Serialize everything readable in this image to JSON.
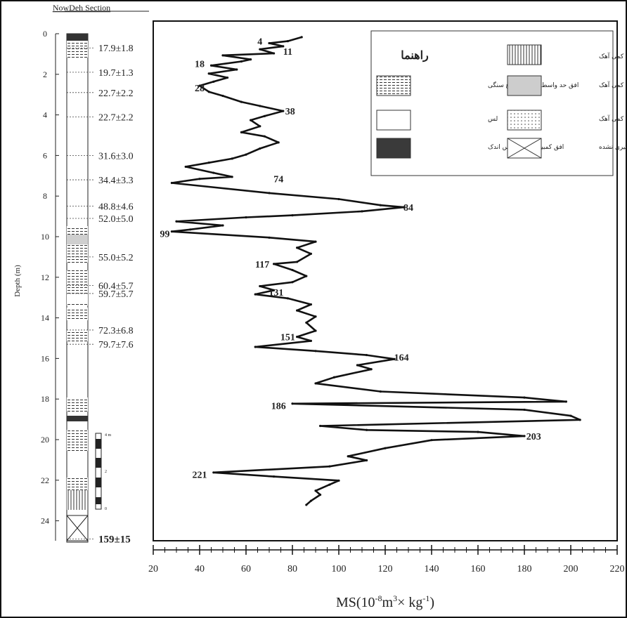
{
  "section_title": "NowDeh Section",
  "depth_axis": {
    "label": "Depth (m)",
    "ticks": [
      0,
      2,
      4,
      6,
      8,
      10,
      12,
      14,
      16,
      18,
      20,
      22,
      24
    ],
    "range": [
      0,
      25
    ]
  },
  "ages": [
    {
      "depth": 0.7,
      "label": "17.9±1.8"
    },
    {
      "depth": 1.9,
      "label": "19.7±1.3"
    },
    {
      "depth": 2.9,
      "label": "22.7±2.2"
    },
    {
      "depth": 4.1,
      "label": "22.7±2.2"
    },
    {
      "depth": 6.0,
      "label": "31.6±3.0"
    },
    {
      "depth": 7.2,
      "label": "34.4±3.3"
    },
    {
      "depth": 8.5,
      "label": "48.8±4.6"
    },
    {
      "depth": 9.1,
      "label": "52.0±5.0"
    },
    {
      "depth": 11.0,
      "label": "55.0±5.2"
    },
    {
      "depth": 12.4,
      "label": "60.4±5.7"
    },
    {
      "depth": 12.8,
      "label": "59.7±5.7"
    },
    {
      "depth": 14.6,
      "label": "72.3±6.8"
    },
    {
      "depth": 15.3,
      "label": "79.7±7.6"
    },
    {
      "depth": 24.9,
      "label": "159±15"
    }
  ],
  "scale_bar": {
    "labels": [
      "4 m",
      "2",
      "0"
    ]
  },
  "legend": {
    "title": "راهنما",
    "items": [
      {
        "label": "افق آرژلیک با کمی آهک",
        "pattern": "vlines"
      },
      {
        "label": "افق حد واسط C وB انقطاع سنگی",
        "pattern": "hdash"
      },
      {
        "label": "افق کمبیک با کمی آهک",
        "pattern": "gray"
      },
      {
        "label": "لس",
        "pattern": "blank"
      },
      {
        "label": "افق C با کمی آهک",
        "pattern": "dots"
      },
      {
        "label": "افق کمبیک با تجمع رس اندک",
        "pattern": "dark"
      },
      {
        "label": "اندازه گیری نشده",
        "pattern": "cross"
      }
    ]
  },
  "chart_data": {
    "type": "line",
    "xlabel": "MS(10⁻⁸m³× kg⁻¹)",
    "ylabel": "Depth (m)",
    "xlim": [
      20,
      220
    ],
    "ylim": [
      24,
      0
    ],
    "x_ticks": [
      20,
      40,
      60,
      80,
      100,
      120,
      140,
      160,
      180,
      200,
      220
    ],
    "series": [
      {
        "points": [
          [
            84,
            0.1
          ],
          [
            78,
            0.3
          ],
          [
            70,
            0.4
          ],
          [
            76,
            0.55
          ],
          [
            66,
            0.7
          ],
          [
            72,
            0.9
          ],
          [
            50,
            1.0
          ],
          [
            62,
            1.2
          ],
          [
            58,
            1.3
          ],
          [
            45,
            1.5
          ],
          [
            56,
            1.7
          ],
          [
            44,
            1.9
          ],
          [
            52,
            2.1
          ],
          [
            46,
            2.3
          ],
          [
            40,
            2.5
          ],
          [
            44,
            2.8
          ],
          [
            50,
            3.0
          ],
          [
            58,
            3.3
          ],
          [
            66,
            3.5
          ],
          [
            76,
            3.75
          ],
          [
            68,
            4.0
          ],
          [
            62,
            4.2
          ],
          [
            66,
            4.5
          ],
          [
            58,
            4.8
          ],
          [
            68,
            5.0
          ],
          [
            74,
            5.3
          ],
          [
            66,
            5.6
          ],
          [
            60,
            5.9
          ],
          [
            54,
            6.1
          ],
          [
            44,
            6.3
          ],
          [
            34,
            6.5
          ],
          [
            46,
            6.8
          ],
          [
            54,
            7.0
          ],
          [
            40,
            7.1
          ],
          [
            28,
            7.3
          ],
          [
            70,
            7.8
          ],
          [
            100,
            8.1
          ],
          [
            118,
            8.4
          ],
          [
            128,
            8.5
          ],
          [
            110,
            8.7
          ],
          [
            80,
            8.9
          ],
          [
            60,
            9.0
          ],
          [
            30,
            9.2
          ],
          [
            50,
            9.4
          ],
          [
            36,
            9.6
          ],
          [
            28,
            9.7
          ],
          [
            70,
            10.0
          ],
          [
            90,
            10.2
          ],
          [
            82,
            10.5
          ],
          [
            88,
            10.8
          ],
          [
            82,
            11.2
          ],
          [
            72,
            11.3
          ],
          [
            80,
            11.6
          ],
          [
            86,
            11.9
          ],
          [
            80,
            12.2
          ],
          [
            66,
            12.4
          ],
          [
            72,
            12.6
          ],
          [
            64,
            12.8
          ],
          [
            78,
            13.0
          ],
          [
            88,
            13.3
          ],
          [
            82,
            13.6
          ],
          [
            90,
            13.9
          ],
          [
            86,
            14.2
          ],
          [
            90,
            14.6
          ],
          [
            82,
            14.9
          ],
          [
            88,
            15.1
          ],
          [
            64,
            15.4
          ],
          [
            90,
            15.6
          ],
          [
            112,
            15.8
          ],
          [
            124,
            16.0
          ],
          [
            108,
            16.3
          ],
          [
            114,
            16.5
          ],
          [
            98,
            16.9
          ],
          [
            90,
            17.2
          ],
          [
            118,
            17.6
          ],
          [
            180,
            17.9
          ],
          [
            198,
            18.1
          ],
          [
            80,
            18.2
          ],
          [
            180,
            18.5
          ],
          [
            200,
            18.8
          ],
          [
            204,
            19.0
          ],
          [
            92,
            19.3
          ],
          [
            112,
            19.5
          ],
          [
            160,
            19.6
          ],
          [
            180,
            19.8
          ],
          [
            140,
            20.0
          ],
          [
            120,
            20.4
          ],
          [
            104,
            20.8
          ],
          [
            112,
            21.0
          ],
          [
            96,
            21.3
          ],
          [
            46,
            21.6
          ],
          [
            72,
            21.8
          ],
          [
            100,
            22.0
          ],
          [
            96,
            22.2
          ],
          [
            90,
            22.5
          ],
          [
            92,
            22.7
          ],
          [
            88,
            23.0
          ],
          [
            86,
            23.2
          ]
        ]
      }
    ],
    "annotations": [
      {
        "label": "4",
        "x": 66,
        "y": 0.3
      },
      {
        "label": "11",
        "x": 78,
        "y": 0.8
      },
      {
        "label": "18",
        "x": 40,
        "y": 1.4
      },
      {
        "label": "28",
        "x": 40,
        "y": 2.6
      },
      {
        "label": "38",
        "x": 79,
        "y": 3.75
      },
      {
        "label": "74",
        "x": 74,
        "y": 7.1
      },
      {
        "label": "84",
        "x": 130,
        "y": 8.5
      },
      {
        "label": "99",
        "x": 25,
        "y": 9.8
      },
      {
        "label": "117",
        "x": 67,
        "y": 11.3
      },
      {
        "label": "131",
        "x": 73,
        "y": 12.7
      },
      {
        "label": "151",
        "x": 78,
        "y": 14.9
      },
      {
        "label": "164",
        "x": 127,
        "y": 15.9
      },
      {
        "label": "186",
        "x": 74,
        "y": 18.3
      },
      {
        "label": "203",
        "x": 184,
        "y": 19.8
      },
      {
        "label": "221",
        "x": 40,
        "y": 21.7
      }
    ]
  },
  "colors": {
    "line": "#111111",
    "axis": "#222222",
    "legend_border": "#333333"
  }
}
